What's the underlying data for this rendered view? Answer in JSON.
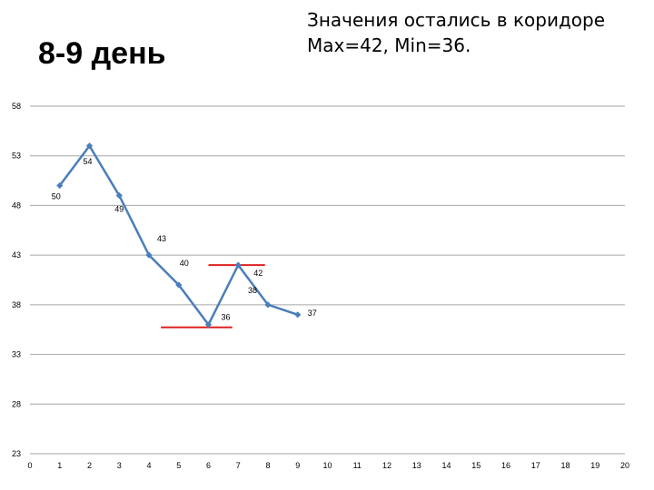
{
  "slide": {
    "title": "8-9 день",
    "note_line1": "Значения остались в коридоре",
    "note_line2": "Max=42, Min=36."
  },
  "chart_data": {
    "type": "line",
    "title": "",
    "xlabel": "",
    "ylabel": "",
    "x": [
      1,
      2,
      3,
      4,
      5,
      6,
      7,
      8,
      9
    ],
    "series": [
      {
        "values": [
          50,
          54,
          49,
          43,
          40,
          36,
          42,
          38,
          37
        ],
        "color": "#4a7ebb"
      }
    ],
    "data_labels": [
      "50",
      "54",
      "49",
      "43",
      "40",
      "36",
      "42",
      "38",
      "37"
    ],
    "x_ticks": [
      "0",
      "1",
      "2",
      "3",
      "4",
      "5",
      "6",
      "7",
      "8",
      "9",
      "10",
      "11",
      "12",
      "13",
      "14",
      "15",
      "16",
      "17",
      "18",
      "19",
      "20"
    ],
    "y_ticks": [
      "58",
      "53",
      "48",
      "43",
      "38",
      "33",
      "28",
      "23"
    ],
    "y_tick_values": [
      58,
      53,
      48,
      43,
      38,
      33,
      28,
      23
    ],
    "xlim": [
      0,
      20
    ],
    "ylim": [
      23,
      58
    ],
    "grid": "horizontal",
    "legend": "none",
    "reference_lines": [
      {
        "name": "max",
        "value": 42,
        "x_range": [
          6,
          7.9
        ],
        "color": "#e02020"
      },
      {
        "name": "min",
        "value": 36,
        "x_range": [
          4.4,
          6.8
        ],
        "color": "#e02020"
      }
    ]
  }
}
